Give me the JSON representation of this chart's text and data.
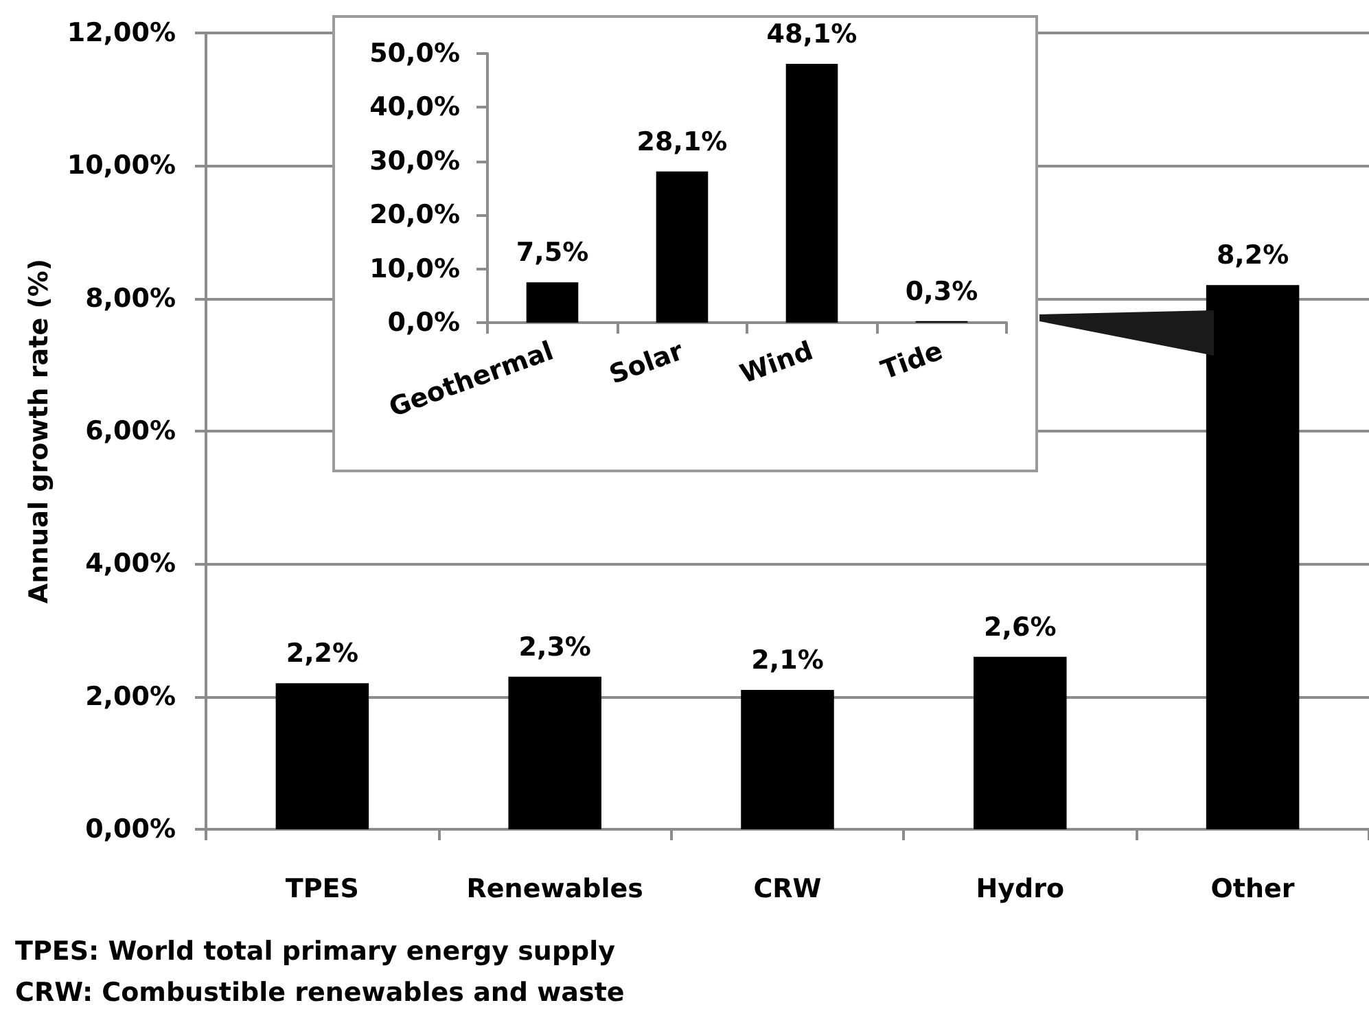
{
  "chart_data": [
    {
      "type": "bar",
      "ylabel": "Annual growth rate (%)",
      "categories": [
        "TPES",
        "Renewables",
        "CRW",
        "Hydro",
        "Other"
      ],
      "values": [
        2.2,
        2.3,
        2.1,
        2.6,
        8.2
      ],
      "value_labels": [
        "2,2%",
        "2,3%",
        "2,1%",
        "2,6%",
        "8,2%"
      ],
      "color": "#000000",
      "ylim": [
        0,
        12
      ],
      "yticks": [
        {
          "value": 0,
          "label": "0,00%"
        },
        {
          "value": 2,
          "label": "2,00%"
        },
        {
          "value": 4,
          "label": "4,00%"
        },
        {
          "value": 6,
          "label": "6,00%"
        },
        {
          "value": 8,
          "label": "8,00%"
        },
        {
          "value": 10,
          "label": "10,00%"
        },
        {
          "value": 12,
          "label": "12,00%"
        }
      ],
      "grid": "y",
      "annotations": [
        "TPES: World total primary energy supply",
        "CRW: Combustible renewables and waste"
      ]
    },
    {
      "type": "bar",
      "categories": [
        "Geothermal",
        "Solar",
        "Wind",
        "Tide"
      ],
      "values": [
        7.5,
        28.1,
        48.1,
        0.3
      ],
      "value_labels": [
        "7,5%",
        "28,1%",
        "48,1%",
        "0,3%"
      ],
      "color": "#000000",
      "ylim": [
        0,
        50
      ],
      "yticks": [
        {
          "value": 0,
          "label": "0,0%"
        },
        {
          "value": 10,
          "label": "10,0%"
        },
        {
          "value": 20,
          "label": "20,0%"
        },
        {
          "value": 30,
          "label": "30,0%"
        },
        {
          "value": 40,
          "label": "40,0%"
        },
        {
          "value": 50,
          "label": "50,0%"
        }
      ]
    }
  ]
}
